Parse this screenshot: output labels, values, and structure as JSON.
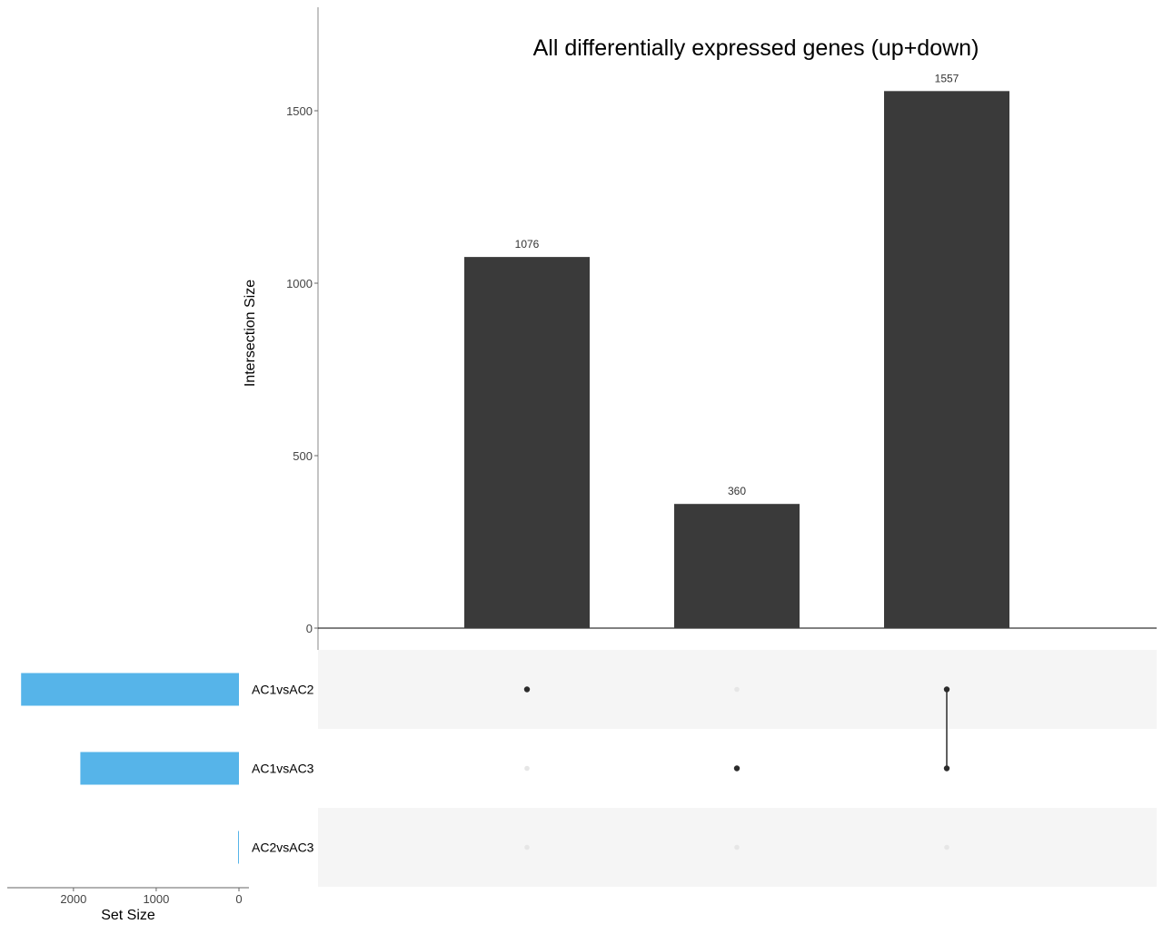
{
  "chart_data": {
    "type": "bar",
    "subtype": "upset",
    "title": "All differentially expressed genes (up+down)",
    "intersection_axis": {
      "label": "Intersection Size",
      "ylim": [
        0,
        1800
      ],
      "ticks": [
        0,
        500,
        1000,
        1500
      ]
    },
    "intersections": [
      {
        "value": 1076,
        "label": "1076",
        "sets": [
          "AC1vsAC2"
        ]
      },
      {
        "value": 360,
        "label": "360",
        "sets": [
          "AC1vsAC3"
        ]
      },
      {
        "value": 1557,
        "label": "1557",
        "sets": [
          "AC1vsAC2",
          "AC1vsAC3"
        ]
      }
    ],
    "sets": [
      {
        "name": "AC1vsAC2",
        "size": 2633
      },
      {
        "name": "AC1vsAC3",
        "size": 1917
      },
      {
        "name": "AC2vsAC3",
        "size": 5
      }
    ],
    "set_size_axis": {
      "label": "Set Size",
      "ticks": [
        2000,
        1000,
        0
      ],
      "tick_labels": [
        "2000",
        "1000",
        "0"
      ],
      "xlim": [
        2800,
        0
      ]
    },
    "colors": {
      "bar": "#3a3a3a",
      "set_bar": "#56b4e9",
      "dot_active": "#2b2b2b",
      "dot_inactive": "#e6e6e6",
      "stripe": "#f5f5f5"
    },
    "grid": false,
    "legend": "none"
  }
}
